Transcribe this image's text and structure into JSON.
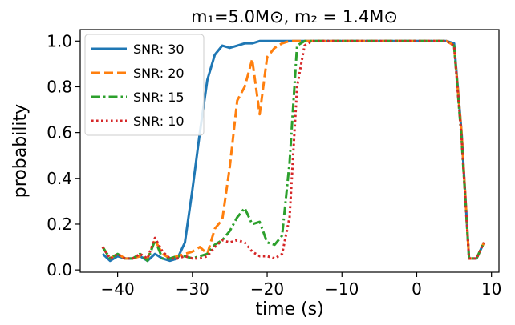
{
  "chart_data": {
    "type": "line",
    "title": "m₁=5.0M⊙, m₂ = 1.4M⊙",
    "xlabel": "time (s)",
    "ylabel": "probability",
    "xlim": [
      -45,
      11
    ],
    "ylim": [
      -0.01,
      1.05
    ],
    "xticks": [
      -40,
      -30,
      -20,
      -10,
      0,
      10
    ],
    "xtick_labels": [
      "−40",
      "−30",
      "−20",
      "−10",
      "0",
      "10"
    ],
    "yticks": [
      0.0,
      0.2,
      0.4,
      0.6,
      0.8,
      1.0
    ],
    "ytick_labels": [
      "0.0",
      "0.2",
      "0.4",
      "0.6",
      "0.8",
      "1.0"
    ],
    "grid": false,
    "legend_position": "top-left",
    "series": [
      {
        "name": "SNR: 30",
        "color": "#1f77b4",
        "dash": "solid",
        "x": [
          -42,
          -41,
          -40,
          -39,
          -38,
          -37,
          -36,
          -35,
          -34,
          -33,
          -32,
          -31,
          -30,
          -29,
          -28,
          -27,
          -26,
          -25,
          -24,
          -23,
          -22,
          -21,
          -20,
          -19,
          -18,
          -17,
          -16,
          -15,
          -14,
          -10,
          0,
          4,
          5,
          6,
          7,
          8,
          9
        ],
        "y": [
          0.07,
          0.04,
          0.06,
          0.05,
          0.05,
          0.06,
          0.04,
          0.07,
          0.05,
          0.04,
          0.05,
          0.12,
          0.35,
          0.6,
          0.83,
          0.94,
          0.98,
          0.97,
          0.98,
          0.99,
          0.99,
          1.0,
          1.0,
          1.0,
          1.0,
          1.0,
          1.0,
          1.0,
          1.0,
          1.0,
          1.0,
          1.0,
          0.99,
          0.6,
          0.05,
          0.05,
          0.12
        ]
      },
      {
        "name": "SNR: 20",
        "color": "#ff7f0e",
        "dash": "dashed",
        "x": [
          -42,
          -41,
          -40,
          -39,
          -38,
          -37,
          -36,
          -35,
          -34,
          -33,
          -32,
          -31,
          -30,
          -29,
          -28,
          -27,
          -26,
          -25,
          -24,
          -23,
          -22,
          -21,
          -20,
          -19,
          -18,
          -17,
          -16,
          -15,
          -14,
          -10,
          0,
          4,
          5,
          6,
          7,
          8,
          9
        ],
        "y": [
          0.1,
          0.05,
          0.07,
          0.05,
          0.05,
          0.06,
          0.05,
          0.13,
          0.07,
          0.05,
          0.06,
          0.07,
          0.08,
          0.1,
          0.07,
          0.18,
          0.22,
          0.45,
          0.74,
          0.8,
          0.92,
          0.68,
          0.93,
          0.97,
          0.99,
          1.0,
          1.0,
          1.0,
          1.0,
          1.0,
          1.0,
          1.0,
          0.98,
          0.6,
          0.05,
          0.05,
          0.12
        ]
      },
      {
        "name": "SNR: 15",
        "color": "#2ca02c",
        "dash": "dashdot",
        "x": [
          -42,
          -41,
          -40,
          -39,
          -38,
          -37,
          -36,
          -35,
          -34,
          -33,
          -32,
          -31,
          -30,
          -29,
          -28,
          -27,
          -26,
          -25,
          -24,
          -23,
          -22,
          -21,
          -20,
          -19,
          -18,
          -17,
          -16,
          -15,
          -14,
          -10,
          0,
          4,
          5,
          6,
          7,
          8,
          9
        ],
        "y": [
          0.1,
          0.05,
          0.07,
          0.05,
          0.05,
          0.07,
          0.04,
          0.13,
          0.05,
          0.05,
          0.06,
          0.06,
          0.05,
          0.06,
          0.07,
          0.11,
          0.13,
          0.17,
          0.23,
          0.27,
          0.2,
          0.21,
          0.12,
          0.11,
          0.15,
          0.47,
          0.98,
          1.0,
          1.0,
          1.0,
          1.0,
          1.0,
          0.98,
          0.57,
          0.05,
          0.05,
          0.12
        ]
      },
      {
        "name": "SNR: 10",
        "color": "#d62728",
        "dash": "dotted",
        "x": [
          -42,
          -41,
          -40,
          -39,
          -38,
          -37,
          -36,
          -35,
          -34,
          -33,
          -32,
          -31,
          -30,
          -29,
          -28,
          -27,
          -26,
          -25,
          -24,
          -23,
          -22,
          -21,
          -20,
          -19,
          -18,
          -17,
          -16,
          -15,
          -14,
          -10,
          0,
          4,
          5,
          6,
          7,
          8,
          9
        ],
        "y": [
          0.1,
          0.05,
          0.07,
          0.05,
          0.05,
          0.07,
          0.05,
          0.14,
          0.08,
          0.05,
          0.05,
          0.06,
          0.05,
          0.05,
          0.06,
          0.1,
          0.13,
          0.12,
          0.13,
          0.12,
          0.08,
          0.06,
          0.06,
          0.05,
          0.07,
          0.23,
          0.8,
          0.98,
          1.0,
          1.0,
          1.0,
          1.0,
          0.98,
          0.58,
          0.05,
          0.05,
          0.12
        ]
      }
    ]
  }
}
